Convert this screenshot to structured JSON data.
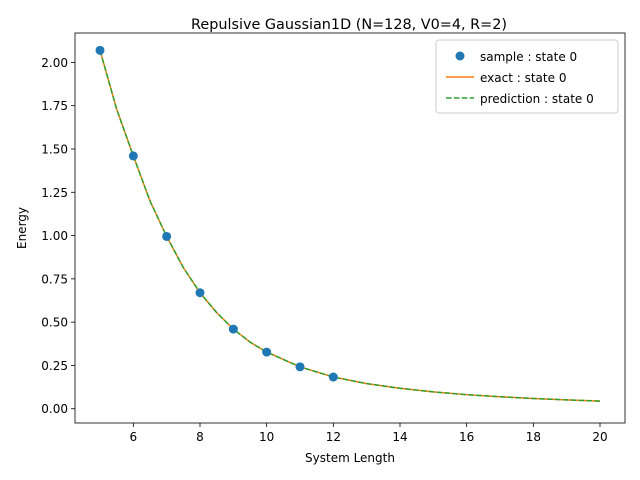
{
  "chart_data": {
    "type": "line",
    "title": "Repulsive Gaussian1D (N=128, V0=4, R=2)",
    "xlabel": "System Length",
    "ylabel": "Energy",
    "xlim": [
      4.25,
      20.75
    ],
    "ylim": [
      -0.0825,
      2.17
    ],
    "xticks": [
      6,
      8,
      10,
      12,
      14,
      16,
      18,
      20
    ],
    "xtick_labels": [
      "6",
      "8",
      "10",
      "12",
      "14",
      "16",
      "18",
      "20"
    ],
    "yticks": [
      0.0,
      0.25,
      0.5,
      0.75,
      1.0,
      1.25,
      1.5,
      1.75,
      2.0
    ],
    "ytick_labels": [
      "0.00",
      "0.25",
      "0.50",
      "0.75",
      "1.00",
      "1.25",
      "1.50",
      "1.75",
      "2.00"
    ],
    "grid": false,
    "legend_position": "upper right",
    "series": [
      {
        "name": "sample : state 0",
        "kind": "markers",
        "color": "#1f77b4",
        "x": [
          5,
          6,
          7,
          8,
          9,
          10,
          11,
          12
        ],
        "y": [
          2.07,
          1.46,
          0.995,
          0.67,
          0.46,
          0.327,
          0.242,
          0.183
        ]
      },
      {
        "name": "exact : state 0",
        "kind": "solid",
        "color": "#ff7f0e",
        "x": [
          5,
          5.5,
          6,
          6.5,
          7,
          7.5,
          8,
          8.5,
          9,
          9.5,
          10,
          11,
          12,
          13,
          14,
          15,
          16,
          17,
          18,
          19,
          20
        ],
        "y": [
          2.07,
          1.73,
          1.46,
          1.2,
          0.995,
          0.815,
          0.67,
          0.555,
          0.46,
          0.385,
          0.327,
          0.242,
          0.183,
          0.145,
          0.118,
          0.097,
          0.081,
          0.069,
          0.059,
          0.051,
          0.044
        ]
      },
      {
        "name": "prediction : state 0",
        "kind": "dashed",
        "color": "#2ca02c",
        "x": [
          5,
          5.5,
          6,
          6.5,
          7,
          7.5,
          8,
          8.5,
          9,
          9.5,
          10,
          11,
          12,
          13,
          14,
          15,
          16,
          17,
          18,
          19,
          20
        ],
        "y": [
          2.07,
          1.73,
          1.46,
          1.2,
          0.995,
          0.815,
          0.67,
          0.555,
          0.46,
          0.385,
          0.327,
          0.242,
          0.183,
          0.145,
          0.118,
          0.097,
          0.081,
          0.069,
          0.059,
          0.051,
          0.044
        ]
      }
    ]
  }
}
